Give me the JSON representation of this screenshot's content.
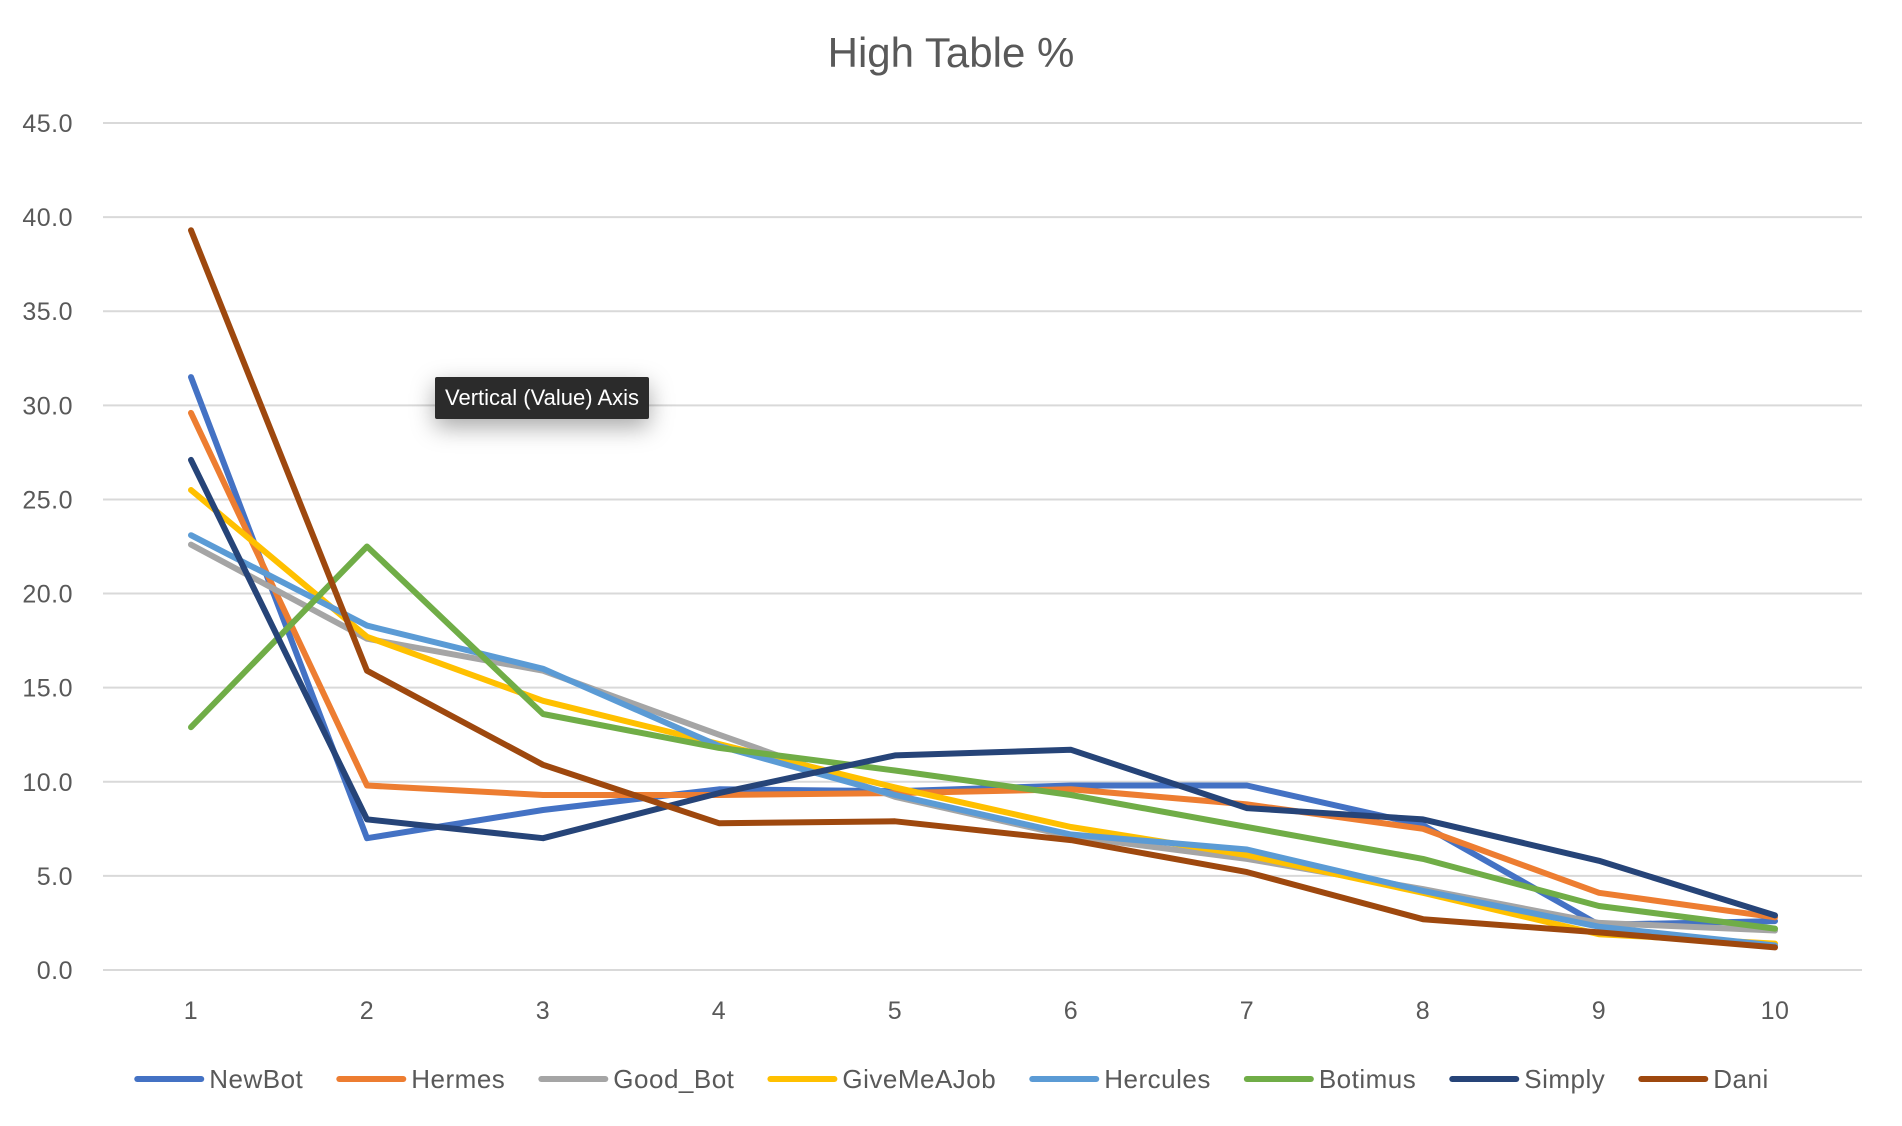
{
  "chart_data": {
    "type": "line",
    "title": "High Table %",
    "x": [
      1,
      2,
      3,
      4,
      5,
      6,
      7,
      8,
      9,
      10
    ],
    "ylim": [
      0,
      45
    ],
    "ytick_labels": [
      "0.0",
      "5.0",
      "10.0",
      "15.0",
      "20.0",
      "25.0",
      "30.0",
      "35.0",
      "40.0",
      "45.0"
    ],
    "xtick_labels": [
      "1",
      "2",
      "3",
      "4",
      "5",
      "6",
      "7",
      "8",
      "9",
      "10"
    ],
    "grid": true,
    "legend_position": "bottom",
    "series": [
      {
        "name": "NewBot",
        "color": "#4472c4",
        "values": [
          31.5,
          7.0,
          8.5,
          9.6,
          9.5,
          9.8,
          9.8,
          7.7,
          2.4,
          2.6
        ]
      },
      {
        "name": "Hermes",
        "color": "#ed7d31",
        "values": [
          29.6,
          9.8,
          9.3,
          9.3,
          9.4,
          9.6,
          8.8,
          7.5,
          4.1,
          2.8
        ]
      },
      {
        "name": "Good_Bot",
        "color": "#a5a5a5",
        "values": [
          22.6,
          17.6,
          15.9,
          12.5,
          9.2,
          7.1,
          5.9,
          4.3,
          2.5,
          2.1
        ]
      },
      {
        "name": "GiveMeAJob",
        "color": "#ffc000",
        "values": [
          25.5,
          17.7,
          14.3,
          12.0,
          9.7,
          7.6,
          6.1,
          4.1,
          1.9,
          1.4
        ]
      },
      {
        "name": "Hercules",
        "color": "#5b9bd5",
        "values": [
          23.1,
          18.3,
          16.0,
          11.9,
          9.3,
          7.2,
          6.4,
          4.2,
          2.3,
          1.3
        ]
      },
      {
        "name": "Botimus",
        "color": "#70ad47",
        "values": [
          12.9,
          22.5,
          13.6,
          11.8,
          10.6,
          9.3,
          7.6,
          5.9,
          3.4,
          2.2
        ]
      },
      {
        "name": "Simply",
        "color": "#264478",
        "values": [
          27.1,
          8.0,
          7.0,
          9.4,
          11.4,
          11.7,
          8.6,
          8.0,
          5.8,
          2.9
        ]
      },
      {
        "name": "Dani",
        "color": "#9e480e",
        "values": [
          39.3,
          15.9,
          10.9,
          7.8,
          7.9,
          6.9,
          5.2,
          2.7,
          2.0,
          1.2
        ]
      }
    ],
    "tooltip": "Vertical (Value) Axis"
  }
}
